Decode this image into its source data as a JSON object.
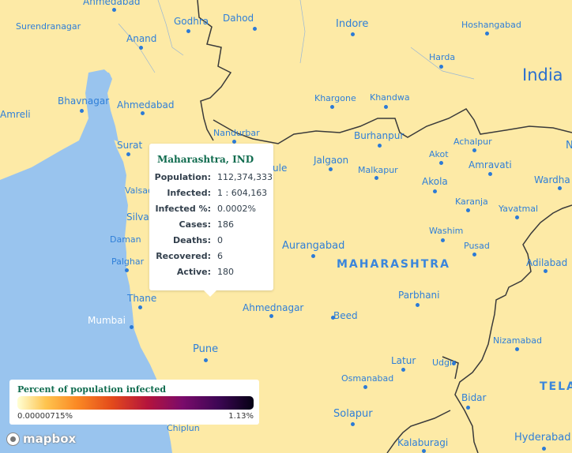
{
  "map": {
    "country_label": "India",
    "state_labels": [
      "MAHARASHTRA",
      "TELA"
    ],
    "places": [
      "Ahmedabad",
      "Godhra",
      "Dahod",
      "Indore",
      "Hoshangabad",
      "Surendranagar",
      "Anand",
      "Harda",
      "Bhavnagar",
      "Ahmedabad",
      "Amreli",
      "Khargone",
      "Khandwa",
      "Nandurbar",
      "Burhanpur",
      "Achalpur",
      "Surat",
      "Jalgaon",
      "Akot",
      "Malkapur",
      "Amravati",
      "Wardha",
      "Valsad",
      "Akola",
      "Karanja",
      "Yavatmal",
      "Silvassa",
      "Daman",
      "Washim",
      "Palghar",
      "Aurangabad",
      "Pusad",
      "Adilabad",
      "Thane",
      "Parbhani",
      "Ahmednagar",
      "Mumbai",
      "Beed",
      "Nizamabad",
      "Pune",
      "Latur",
      "Udgir",
      "Osmanabad",
      "Bidar",
      "Solapur",
      "Chiplun",
      "Kalaburagi",
      "Hyderabad",
      "N",
      "ule"
    ]
  },
  "tooltip": {
    "title": "Maharashtra, IND",
    "rows": [
      {
        "key": "Population:",
        "value": "112,374,333"
      },
      {
        "key": "Infected:",
        "value": "1 : 604,163"
      },
      {
        "key": "Infected %:",
        "value": "0.0002%"
      },
      {
        "key": "Cases:",
        "value": "186"
      },
      {
        "key": "Deaths:",
        "value": "0"
      },
      {
        "key": "Recovered:",
        "value": "6"
      },
      {
        "key": "Active:",
        "value": "180"
      }
    ]
  },
  "legend": {
    "title": "Percent of population infected",
    "min_label": "0.00000715%",
    "max_label": "1.13%",
    "colors": [
      "#ffffd4",
      "#fec44f",
      "#fb8a24",
      "#e34a1b",
      "#b5143c",
      "#7a0b6b",
      "#3d0654",
      "#050114"
    ]
  },
  "attribution": {
    "logo_text": "mapbox"
  },
  "colors": {
    "land": "#fdeaa6",
    "water": "#99c4ee",
    "border": "#3a3a3a",
    "label": "#2f7fd8",
    "title": "#0f6b4e"
  }
}
